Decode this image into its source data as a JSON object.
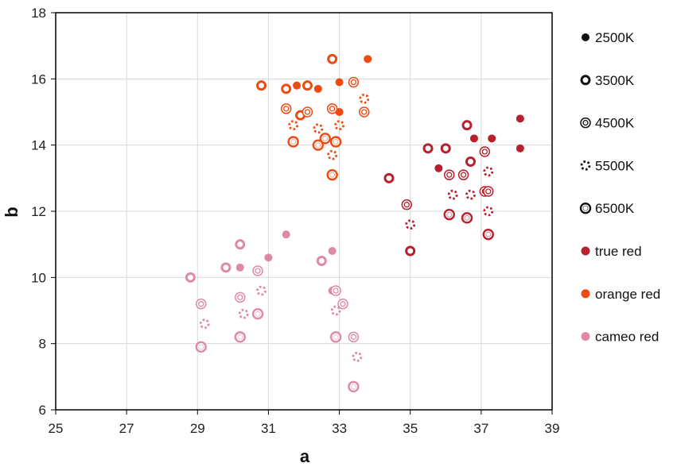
{
  "chart_data": {
    "type": "scatter",
    "title": "",
    "xlabel": "a",
    "ylabel": "b",
    "xlim": [
      25,
      39
    ],
    "ylim": [
      6,
      18
    ],
    "xticks": [
      25,
      27,
      29,
      31,
      33,
      35,
      37,
      39
    ],
    "yticks": [
      6,
      8,
      10,
      12,
      14,
      16,
      18
    ],
    "grid": true,
    "legend_position": "right",
    "legend": [
      {
        "label": "2500K",
        "kind": "marker",
        "marker": "filled"
      },
      {
        "label": "3500K",
        "kind": "marker",
        "marker": "ring-thick"
      },
      {
        "label": "4500K",
        "kind": "marker",
        "marker": "double-ring"
      },
      {
        "label": "5500K",
        "kind": "marker",
        "marker": "dotted-ring"
      },
      {
        "label": "6500K",
        "kind": "marker",
        "marker": "ring-thin"
      },
      {
        "label": "true red",
        "kind": "color",
        "color": "#b8202e"
      },
      {
        "label": "orange red",
        "kind": "color",
        "color": "#ee4b12"
      },
      {
        "label": "cameo red",
        "kind": "color",
        "color": "#e088a8"
      }
    ],
    "colors": {
      "true red": "#b8202e",
      "orange red": "#ee4b12",
      "cameo red": "#e088a8",
      "legend": "#111111"
    },
    "series": [
      {
        "color": "true red",
        "marker": "filled",
        "points": [
          [
            38.1,
            14.8
          ],
          [
            38.1,
            13.9
          ],
          [
            37.3,
            14.2
          ],
          [
            36.8,
            14.2
          ],
          [
            35.8,
            13.3
          ]
        ]
      },
      {
        "color": "true red",
        "marker": "ring-thick",
        "points": [
          [
            34.4,
            13.0
          ],
          [
            35.5,
            13.9
          ],
          [
            36.0,
            13.9
          ],
          [
            36.6,
            14.6
          ],
          [
            36.7,
            13.5
          ],
          [
            35.0,
            10.8
          ]
        ]
      },
      {
        "color": "true red",
        "marker": "double-ring",
        "points": [
          [
            36.1,
            13.1
          ],
          [
            36.5,
            13.1
          ],
          [
            37.1,
            13.8
          ],
          [
            37.1,
            12.6
          ],
          [
            37.2,
            12.6
          ],
          [
            34.9,
            12.2
          ]
        ]
      },
      {
        "color": "true red",
        "marker": "dotted-ring",
        "points": [
          [
            35.0,
            11.6
          ],
          [
            36.2,
            12.5
          ],
          [
            36.7,
            12.5
          ],
          [
            37.2,
            13.2
          ],
          [
            37.2,
            12.0
          ]
        ]
      },
      {
        "color": "true red",
        "marker": "ring-thin",
        "points": [
          [
            36.1,
            11.9
          ],
          [
            36.6,
            11.8
          ],
          [
            37.2,
            11.3
          ]
        ]
      },
      {
        "color": "orange red",
        "marker": "filled",
        "points": [
          [
            33.8,
            16.6
          ],
          [
            31.8,
            15.8
          ],
          [
            32.4,
            15.7
          ],
          [
            33.0,
            15.9
          ],
          [
            33.0,
            15.0
          ]
        ]
      },
      {
        "color": "orange red",
        "marker": "ring-thick",
        "points": [
          [
            30.8,
            15.8
          ],
          [
            31.5,
            15.7
          ],
          [
            32.1,
            15.8
          ],
          [
            31.9,
            14.9
          ],
          [
            32.8,
            16.6
          ]
        ]
      },
      {
        "color": "orange red",
        "marker": "double-ring",
        "points": [
          [
            31.5,
            15.1
          ],
          [
            32.1,
            15.0
          ],
          [
            32.8,
            15.1
          ],
          [
            33.4,
            15.9
          ],
          [
            33.7,
            15.0
          ]
        ]
      },
      {
        "color": "orange red",
        "marker": "dotted-ring",
        "points": [
          [
            31.7,
            14.6
          ],
          [
            32.4,
            14.5
          ],
          [
            33.0,
            14.6
          ],
          [
            33.7,
            15.4
          ],
          [
            32.8,
            13.7
          ]
        ]
      },
      {
        "color": "orange red",
        "marker": "ring-thin",
        "points": [
          [
            31.7,
            14.1
          ],
          [
            32.4,
            14.0
          ],
          [
            32.6,
            14.2
          ],
          [
            32.9,
            14.1
          ],
          [
            32.8,
            13.1
          ]
        ]
      },
      {
        "color": "cameo red",
        "marker": "filled",
        "points": [
          [
            31.5,
            11.3
          ],
          [
            31.0,
            10.6
          ],
          [
            30.2,
            10.3
          ],
          [
            32.8,
            10.8
          ],
          [
            32.8,
            9.6
          ]
        ]
      },
      {
        "color": "cameo red",
        "marker": "ring-thick",
        "points": [
          [
            28.8,
            10.0
          ],
          [
            29.8,
            10.3
          ],
          [
            30.2,
            11.0
          ],
          [
            32.5,
            10.5
          ],
          [
            33.1,
            9.2
          ]
        ]
      },
      {
        "color": "cameo red",
        "marker": "double-ring",
        "points": [
          [
            29.1,
            9.2
          ],
          [
            30.2,
            9.4
          ],
          [
            30.7,
            10.2
          ],
          [
            32.9,
            9.6
          ],
          [
            33.1,
            9.2
          ],
          [
            33.4,
            8.2
          ]
        ]
      },
      {
        "color": "cameo red",
        "marker": "dotted-ring",
        "points": [
          [
            29.2,
            8.6
          ],
          [
            30.3,
            8.9
          ],
          [
            30.8,
            9.6
          ],
          [
            32.9,
            9.0
          ],
          [
            33.5,
            7.6
          ]
        ]
      },
      {
        "color": "cameo red",
        "marker": "ring-thin",
        "points": [
          [
            29.1,
            7.9
          ],
          [
            30.2,
            8.2
          ],
          [
            30.7,
            8.9
          ],
          [
            32.9,
            8.2
          ],
          [
            33.4,
            6.7
          ]
        ]
      }
    ]
  }
}
